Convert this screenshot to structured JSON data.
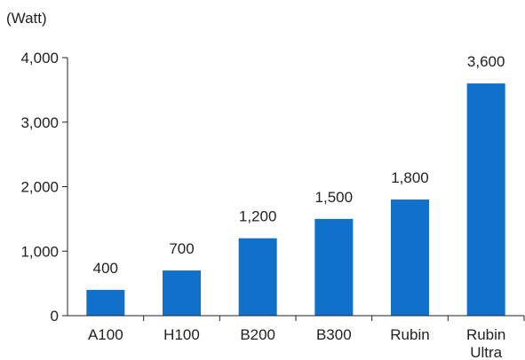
{
  "chart_data": {
    "type": "bar",
    "unit_label": "(Watt)",
    "categories": [
      [
        "A100"
      ],
      [
        "H100"
      ],
      [
        "B200"
      ],
      [
        "B300"
      ],
      [
        "Rubin"
      ],
      [
        "Rubin",
        "Ultra"
      ]
    ],
    "values": [
      400,
      700,
      1200,
      1500,
      1800,
      3600
    ],
    "data_labels": [
      "400",
      "700",
      "1,200",
      "1,500",
      "1,800",
      "3,600"
    ],
    "y_ticks": [
      0,
      1000,
      2000,
      3000,
      4000
    ],
    "y_tick_labels": [
      "0",
      "1,000",
      "2,000",
      "3,000",
      "4,000"
    ],
    "ylim": [
      0,
      4000
    ],
    "bar_color": "#1170C9",
    "grid": false,
    "legend": "none"
  }
}
